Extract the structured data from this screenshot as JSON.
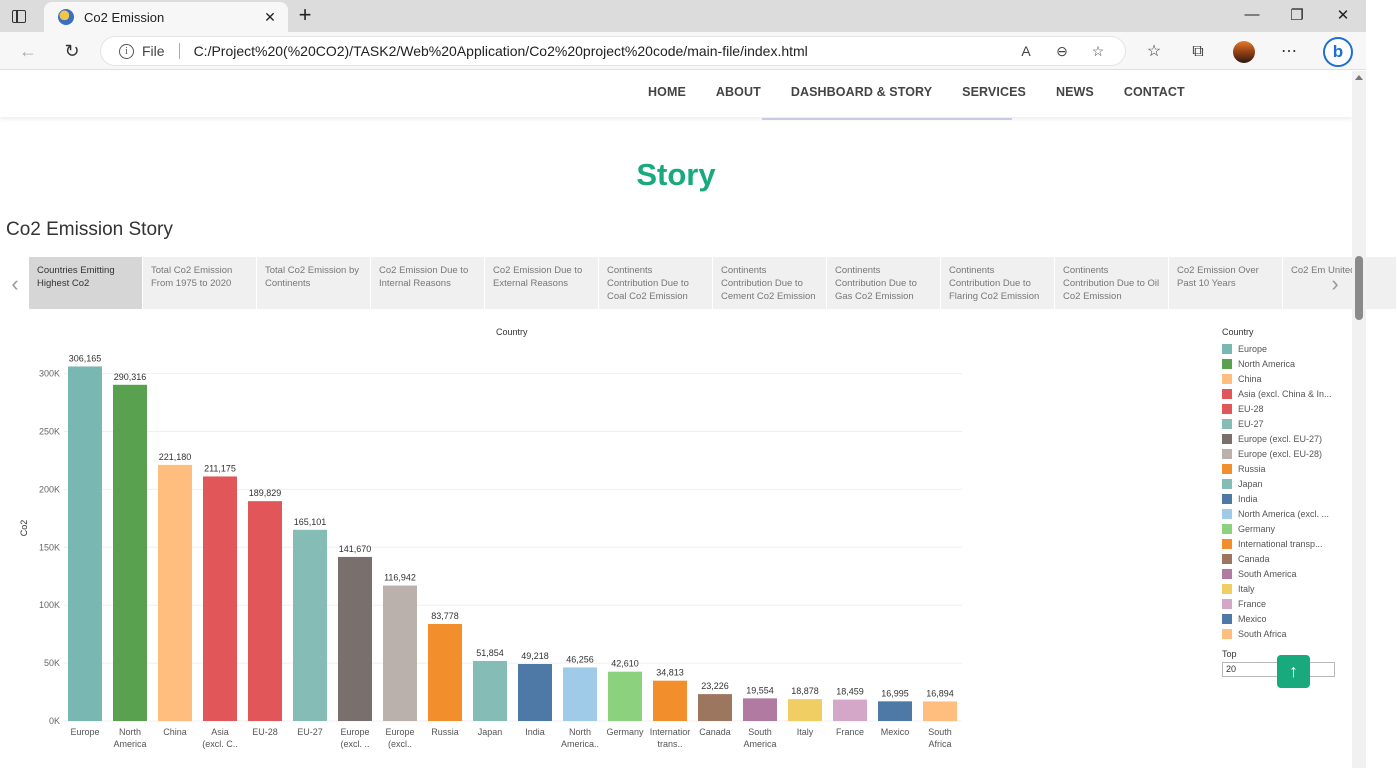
{
  "browser": {
    "tab_title": "Co2 Emission",
    "new_tab_icon": "+",
    "address_prefix": "File",
    "url": "C:/Project%20(%20CO2)/TASK2/Web%20Application/Co2%20project%20code/main-file/index.html"
  },
  "site_nav": {
    "items": [
      "HOME",
      "ABOUT",
      "DASHBOARD & STORY",
      "SERVICES",
      "NEWS",
      "CONTACT"
    ]
  },
  "page": {
    "heading": "Story",
    "viz_title": "Co2 Emission Story",
    "accent_color": "#18a97c"
  },
  "story_points": [
    "Countries Emitting Highest Co2",
    "Total Co2 Emission From 1975 to 2020",
    "Total Co2 Emission by Continents",
    "Co2 Emission Due to Internal Reasons",
    "Co2 Emission Due to External Reasons",
    "Continents Contribution Due to Coal Co2 Emission",
    "Continents Contribution Due to Cement Co2 Emission",
    "Continents Contribution Due to Gas Co2 Emission",
    "Continents Contribution Due to Flaring Co2 Emission",
    "Continents Contribution Due to Oil Co2 Emission",
    "Co2 Emission Over Past 10 Years",
    "Co2 Em United"
  ],
  "chart_data": {
    "type": "bar",
    "title": "Country",
    "ylabel": "Co2",
    "ylim": [
      0,
      310000
    ],
    "yticks": [
      "0K",
      "50K",
      "100K",
      "150K",
      "200K",
      "250K",
      "300K"
    ],
    "grid": true,
    "categories": [
      "Europe",
      "North America",
      "China",
      "Asia (excl. China & I..",
      "EU-28",
      "EU-27",
      "Europe (excl. ..",
      "Europe (excl..",
      "Russia",
      "Japan",
      "India",
      "North America..",
      "Germany",
      "Internatior trans..",
      "Canada",
      "South America",
      "Italy",
      "France",
      "Mexico",
      "South Africa"
    ],
    "values": [
      306165,
      290316,
      221180,
      211175,
      189829,
      165101,
      141670,
      116942,
      83778,
      51854,
      49218,
      46256,
      42610,
      34813,
      23226,
      19554,
      18878,
      18459,
      16995,
      16894
    ],
    "value_labels": [
      "306,165",
      "290,316",
      "221,180",
      "211,175",
      "189,829",
      "165,101",
      "141,670",
      "116,942",
      "83,778",
      "51,854",
      "49,218",
      "46,256",
      "42,610",
      "34,813",
      "23,226",
      "19,554",
      "18,878",
      "18,459",
      "16,995",
      "16,894"
    ],
    "colors": [
      "#79b7b2",
      "#59a14f",
      "#ffbe7d",
      "#e15759",
      "#e15759",
      "#86bcb6",
      "#79706e",
      "#bab0ac",
      "#f28e2b",
      "#86bcb6",
      "#4e79a7",
      "#a0cbe8",
      "#8cd17d",
      "#f28e2b",
      "#9d7660",
      "#b07aa1",
      "#f1ce63",
      "#d4a6c8",
      "#4e79a7",
      "#ffbe7d"
    ],
    "legend_position": "right"
  },
  "legend": {
    "title": "Country",
    "items": [
      {
        "label": "Europe",
        "color": "#79b7b2"
      },
      {
        "label": "North America",
        "color": "#59a14f"
      },
      {
        "label": "China",
        "color": "#ffbe7d"
      },
      {
        "label": "Asia (excl. China & In...",
        "color": "#e15759"
      },
      {
        "label": "EU-28",
        "color": "#e15759"
      },
      {
        "label": "EU-27",
        "color": "#86bcb6"
      },
      {
        "label": "Europe (excl. EU-27)",
        "color": "#79706e"
      },
      {
        "label": "Europe (excl. EU-28)",
        "color": "#bab0ac"
      },
      {
        "label": "Russia",
        "color": "#f28e2b"
      },
      {
        "label": "Japan",
        "color": "#86bcb6"
      },
      {
        "label": "India",
        "color": "#4e79a7"
      },
      {
        "label": "North America (excl. ...",
        "color": "#a0cbe8"
      },
      {
        "label": "Germany",
        "color": "#8cd17d"
      },
      {
        "label": "International transp...",
        "color": "#f28e2b"
      },
      {
        "label": "Canada",
        "color": "#9d7660"
      },
      {
        "label": "South America",
        "color": "#b07aa1"
      },
      {
        "label": "Italy",
        "color": "#f1ce63"
      },
      {
        "label": "France",
        "color": "#d4a6c8"
      },
      {
        "label": "Mexico",
        "color": "#4e79a7"
      },
      {
        "label": "South Africa",
        "color": "#ffbe7d"
      }
    ]
  },
  "top_filter": {
    "label": "Top",
    "value": "20"
  },
  "scroll_top_icon": "↑"
}
